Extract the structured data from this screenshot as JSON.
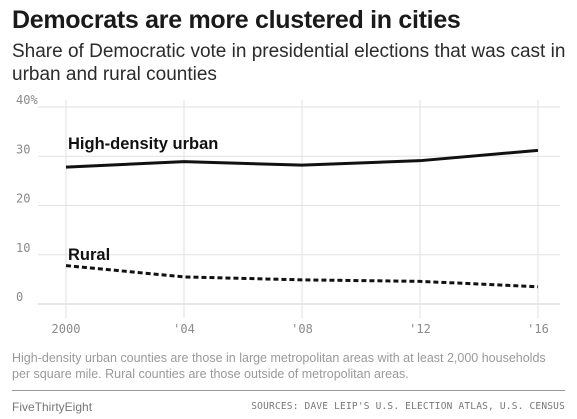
{
  "header": {
    "title": "Democrats are more clustered in cities",
    "subtitle": "Share of Democratic vote in presidential elections that was cast in urban and rural counties"
  },
  "chart_data": {
    "type": "line",
    "x": [
      2000,
      2004,
      2008,
      2012,
      2016
    ],
    "xticklabels": [
      "2000",
      "'04",
      "'08",
      "'12",
      "'16"
    ],
    "yticks": [
      0,
      10,
      20,
      30,
      40
    ],
    "yticklabels": [
      "0",
      "10",
      "20",
      "30",
      "40%"
    ],
    "ylim": [
      0,
      40
    ],
    "xlim": [
      2000,
      2016
    ],
    "grid": true,
    "series": [
      {
        "name": "High-density urban",
        "values": [
          27.8,
          28.9,
          28.2,
          29.1,
          31.2
        ],
        "style": "solid",
        "color": "#111111"
      },
      {
        "name": "Rural",
        "values": [
          7.8,
          5.5,
          4.9,
          4.6,
          3.5
        ],
        "style": "dashed",
        "color": "#111111"
      }
    ]
  },
  "footer": {
    "note": "High-density urban counties are those in large metropolitan areas with at least 2,000 households per square mile. Rural counties are those outside of metropolitan areas.",
    "brand": "FiveThirtyEight",
    "source": "SOURCES: DAVE LEIP'S U.S. ELECTION ATLAS, U.S. CENSUS"
  }
}
